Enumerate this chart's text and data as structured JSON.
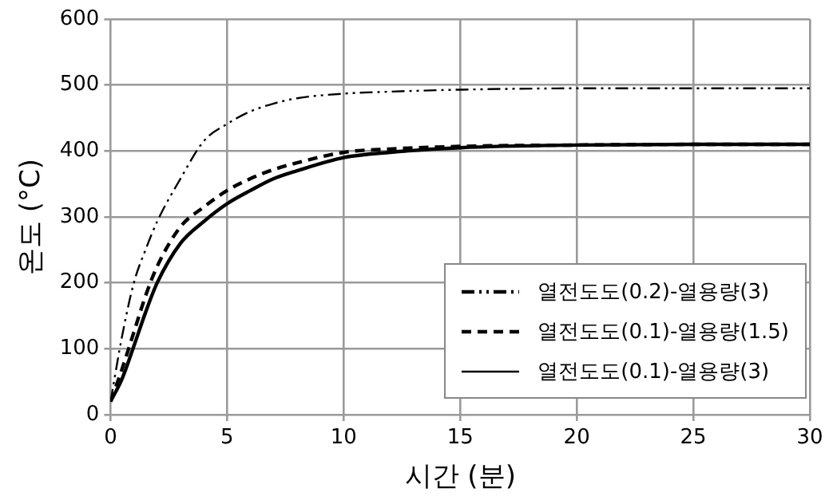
{
  "chart_data": {
    "type": "line",
    "xlabel": "시간 (분)",
    "ylabel": "온도 (°C)",
    "xlim": [
      0,
      30
    ],
    "xticks": [
      0,
      5,
      10,
      15,
      20,
      25,
      30
    ],
    "ylim": [
      0,
      600
    ],
    "yticks": [
      0,
      100,
      200,
      300,
      400,
      500,
      600
    ],
    "grid": true,
    "legend": "bottom right",
    "marker": "none",
    "series": [
      {
        "name": "열전도도(0.2)-열용량(3)",
        "color": "#000000",
        "line_style": "dashdot",
        "x": [
          0,
          0.5,
          1,
          1.5,
          2,
          3,
          4,
          5,
          6,
          7,
          8,
          10,
          12,
          15,
          20,
          25,
          30
        ],
        "values": [
          20,
          120,
          200,
          250,
          293,
          358,
          415,
          441,
          460,
          472,
          480,
          487,
          490,
          493,
          495,
          495,
          495
        ]
      },
      {
        "name": "열전도도(0.1)-열용량(1.5)",
        "color": "#000000",
        "line_style": "dashed",
        "x": [
          0,
          0.5,
          1,
          1.5,
          2,
          3,
          4,
          5,
          6,
          7,
          8,
          10,
          12,
          15,
          20,
          25,
          30
        ],
        "values": [
          20,
          70,
          125,
          180,
          225,
          285,
          315,
          340,
          358,
          372,
          382,
          398,
          403,
          407,
          409,
          410,
          410
        ]
      },
      {
        "name": "열전도도(0.1)-열용량(3)",
        "color": "#000000",
        "line_style": "solid",
        "x": [
          0,
          0.5,
          1,
          1.5,
          2,
          3,
          4,
          5,
          6,
          7,
          8,
          10,
          12,
          15,
          20,
          25,
          30
        ],
        "values": [
          20,
          55,
          104,
          155,
          200,
          260,
          293,
          320,
          340,
          358,
          370,
          390,
          398,
          405,
          409,
          410,
          410
        ]
      }
    ]
  }
}
